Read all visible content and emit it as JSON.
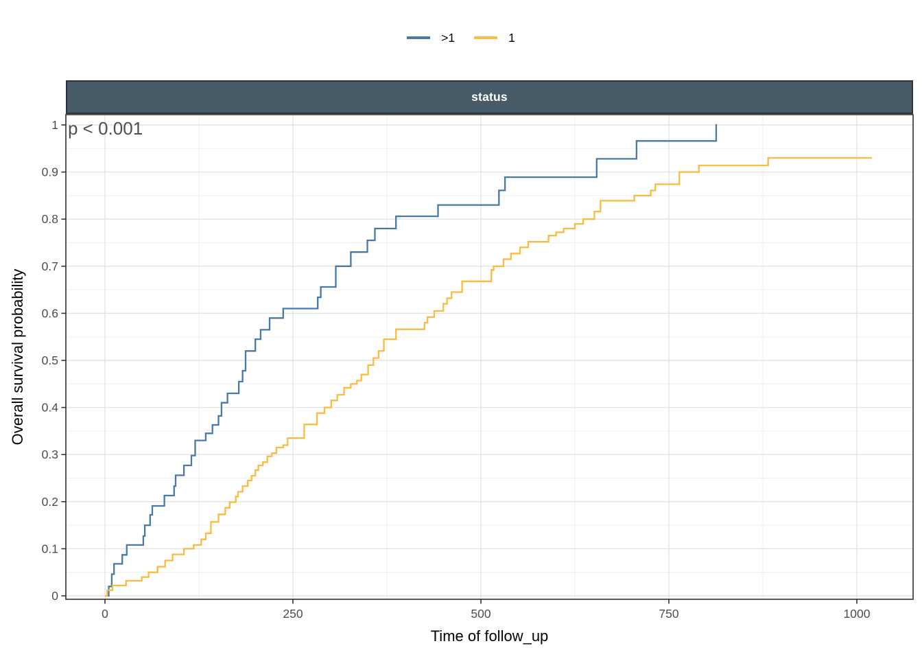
{
  "style": {
    "background": "#ffffff",
    "facet_bg": "#475a68",
    "facet_border": "#2c323a",
    "facet_text": "#ffffff",
    "panel_border": "#2f2f2f",
    "grid_major": "#e3e3e3",
    "grid_minor": "#efefef",
    "tick_color": "#333333",
    "tick_label_color": "#4d4d4d",
    "axis_title_color": "#000000",
    "pvalue_color": "#4f4f4f"
  },
  "chart_data": {
    "type": "line",
    "subtype": "step-survival-curves",
    "title": "status",
    "xlabel": "Time of follow_up",
    "ylabel": "Overall survival probability",
    "pvalue_annotation": "p < 0.001",
    "legend_position": "top",
    "grid": "major+minor",
    "xlim": [
      -52,
      1075
    ],
    "ylim": [
      -0.007,
      1.017
    ],
    "x_ticks": {
      "values": [
        0,
        250,
        500,
        750,
        1000
      ],
      "labels": [
        "0",
        "250",
        "500",
        "750",
        "1000"
      ],
      "minor": [
        125,
        375,
        625,
        875
      ]
    },
    "y_ticks": {
      "values": [
        0,
        0.1,
        0.2,
        0.3,
        0.4,
        0.5,
        0.6,
        0.7,
        0.8,
        0.9,
        1
      ],
      "labels": [
        "0",
        "0.1",
        "0.2",
        "0.3",
        "0.4",
        "0.5",
        "0.6",
        "0.7",
        "0.8",
        "0.9",
        "1"
      ],
      "minor": [
        0.05,
        0.15,
        0.25,
        0.35,
        0.45,
        0.55,
        0.65,
        0.75,
        0.85,
        0.95
      ]
    },
    "series": [
      {
        "name": ">1",
        "color": "#4879a7",
        "end": 814,
        "steps": [
          [
            0,
            0
          ],
          [
            5,
            0.02
          ],
          [
            9,
            0.046
          ],
          [
            12,
            0.068
          ],
          [
            23,
            0.087
          ],
          [
            29,
            0.108
          ],
          [
            51,
            0.127
          ],
          [
            53,
            0.15
          ],
          [
            60,
            0.172
          ],
          [
            63,
            0.191
          ],
          [
            79,
            0.213
          ],
          [
            92,
            0.233
          ],
          [
            94,
            0.256
          ],
          [
            105,
            0.277
          ],
          [
            115,
            0.298
          ],
          [
            120,
            0.33
          ],
          [
            134,
            0.345
          ],
          [
            143,
            0.363
          ],
          [
            151,
            0.382
          ],
          [
            155,
            0.41
          ],
          [
            163,
            0.43
          ],
          [
            178,
            0.455
          ],
          [
            183,
            0.478
          ],
          [
            187,
            0.52
          ],
          [
            200,
            0.545
          ],
          [
            207,
            0.565
          ],
          [
            219,
            0.59
          ],
          [
            237,
            0.61
          ],
          [
            283,
            0.634
          ],
          [
            287,
            0.656
          ],
          [
            307,
            0.7
          ],
          [
            327,
            0.73
          ],
          [
            349,
            0.755
          ],
          [
            359,
            0.78
          ],
          [
            387,
            0.806
          ],
          [
            443,
            0.83
          ],
          [
            524,
            0.861
          ],
          [
            532,
            0.889
          ],
          [
            654,
            0.928
          ],
          [
            707,
            0.966
          ],
          [
            813,
            1.0
          ]
        ]
      },
      {
        "name": "1",
        "color": "#fabb41",
        "end": 1020,
        "steps": [
          [
            0,
            0
          ],
          [
            3,
            0.012
          ],
          [
            10,
            0.022
          ],
          [
            28,
            0.032
          ],
          [
            49,
            0.04
          ],
          [
            58,
            0.05
          ],
          [
            70,
            0.062
          ],
          [
            80,
            0.075
          ],
          [
            90,
            0.088
          ],
          [
            105,
            0.1
          ],
          [
            118,
            0.108
          ],
          [
            128,
            0.12
          ],
          [
            134,
            0.133
          ],
          [
            141,
            0.157
          ],
          [
            151,
            0.173
          ],
          [
            160,
            0.187
          ],
          [
            166,
            0.199
          ],
          [
            174,
            0.211
          ],
          [
            177,
            0.221
          ],
          [
            183,
            0.233
          ],
          [
            190,
            0.245
          ],
          [
            195,
            0.255
          ],
          [
            200,
            0.267
          ],
          [
            204,
            0.277
          ],
          [
            210,
            0.284
          ],
          [
            216,
            0.296
          ],
          [
            222,
            0.303
          ],
          [
            228,
            0.315
          ],
          [
            237,
            0.32
          ],
          [
            243,
            0.335
          ],
          [
            265,
            0.364
          ],
          [
            282,
            0.388
          ],
          [
            292,
            0.4
          ],
          [
            301,
            0.415
          ],
          [
            309,
            0.427
          ],
          [
            318,
            0.442
          ],
          [
            327,
            0.45
          ],
          [
            335,
            0.457
          ],
          [
            341,
            0.47
          ],
          [
            350,
            0.49
          ],
          [
            357,
            0.505
          ],
          [
            364,
            0.52
          ],
          [
            371,
            0.545
          ],
          [
            387,
            0.566
          ],
          [
            425,
            0.58
          ],
          [
            429,
            0.592
          ],
          [
            438,
            0.605
          ],
          [
            450,
            0.62
          ],
          [
            455,
            0.632
          ],
          [
            461,
            0.645
          ],
          [
            475,
            0.668
          ],
          [
            514,
            0.692
          ],
          [
            517,
            0.7
          ],
          [
            530,
            0.715
          ],
          [
            540,
            0.727
          ],
          [
            552,
            0.74
          ],
          [
            563,
            0.752
          ],
          [
            590,
            0.765
          ],
          [
            600,
            0.772
          ],
          [
            610,
            0.78
          ],
          [
            625,
            0.79
          ],
          [
            636,
            0.8
          ],
          [
            651,
            0.816
          ],
          [
            659,
            0.839
          ],
          [
            704,
            0.85
          ],
          [
            726,
            0.861
          ],
          [
            732,
            0.874
          ],
          [
            764,
            0.9
          ],
          [
            790,
            0.914
          ],
          [
            882,
            0.93
          ]
        ]
      }
    ]
  }
}
